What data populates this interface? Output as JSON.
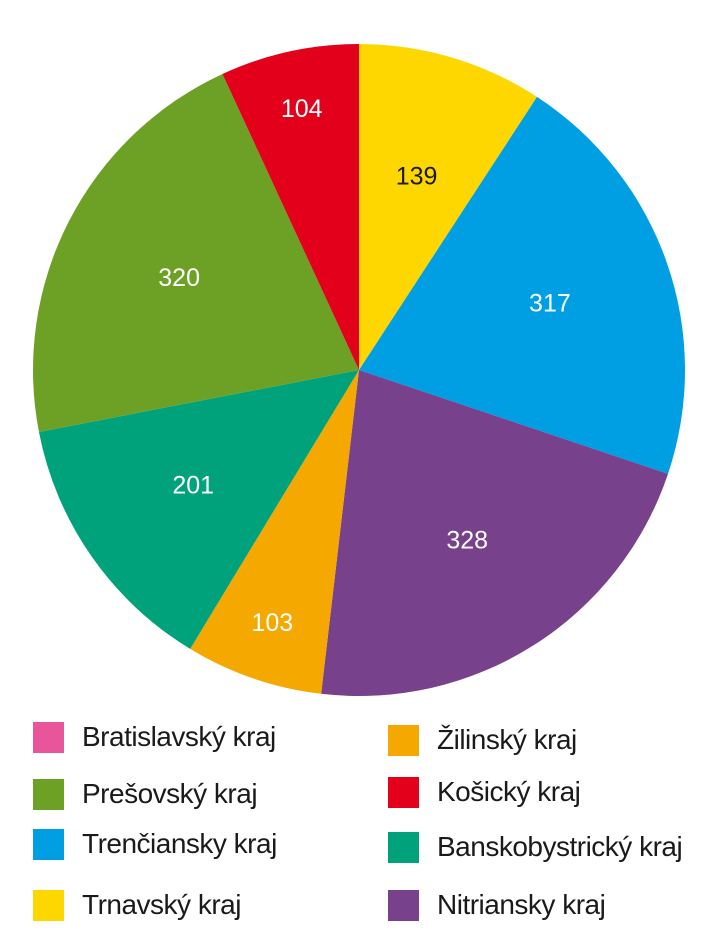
{
  "chart_data": {
    "type": "pie",
    "slices": [
      {
        "name": "Trnavský kraj",
        "value": 139,
        "color": "#ffd700",
        "label_color": "#1a1a1a"
      },
      {
        "name": "Trenčiansky kraj",
        "value": 317,
        "color": "#009fe3",
        "label_color": "#ffffff"
      },
      {
        "name": "Nitriansky kraj",
        "value": 328,
        "color": "#77418b",
        "label_color": "#ffffff"
      },
      {
        "name": "Žilinský kraj",
        "value": 103,
        "color": "#f5a800",
        "label_color": "#ffffff"
      },
      {
        "name": "Banskobystrický kraj",
        "value": 201,
        "color": "#00a27c",
        "label_color": "#ffffff"
      },
      {
        "name": "Prešovský kraj",
        "value": 320,
        "color": "#6da125",
        "label_color": "#ffffff"
      },
      {
        "name": "Košický kraj",
        "value": 104,
        "color": "#e2001a",
        "label_color": "#ffffff"
      }
    ],
    "start": "top",
    "direction": "clockwise",
    "legend_position": "bottom"
  },
  "legend": [
    {
      "label": "Bratislavský kraj",
      "color": "#e8559a"
    },
    {
      "label": "Prešovský kraj",
      "color": "#6da125"
    },
    {
      "label": "Trenčiansky kraj",
      "color": "#009fe3"
    },
    {
      "label": "Trnavský kraj",
      "color": "#ffd700"
    },
    {
      "label": "Žilinský kraj",
      "color": "#f5a800"
    },
    {
      "label": "Košický kraj",
      "color": "#e2001a"
    },
    {
      "label": "Banskobystrický kraj",
      "color": "#00a27c"
    },
    {
      "label": "Nitriansky kraj",
      "color": "#77418b"
    }
  ]
}
